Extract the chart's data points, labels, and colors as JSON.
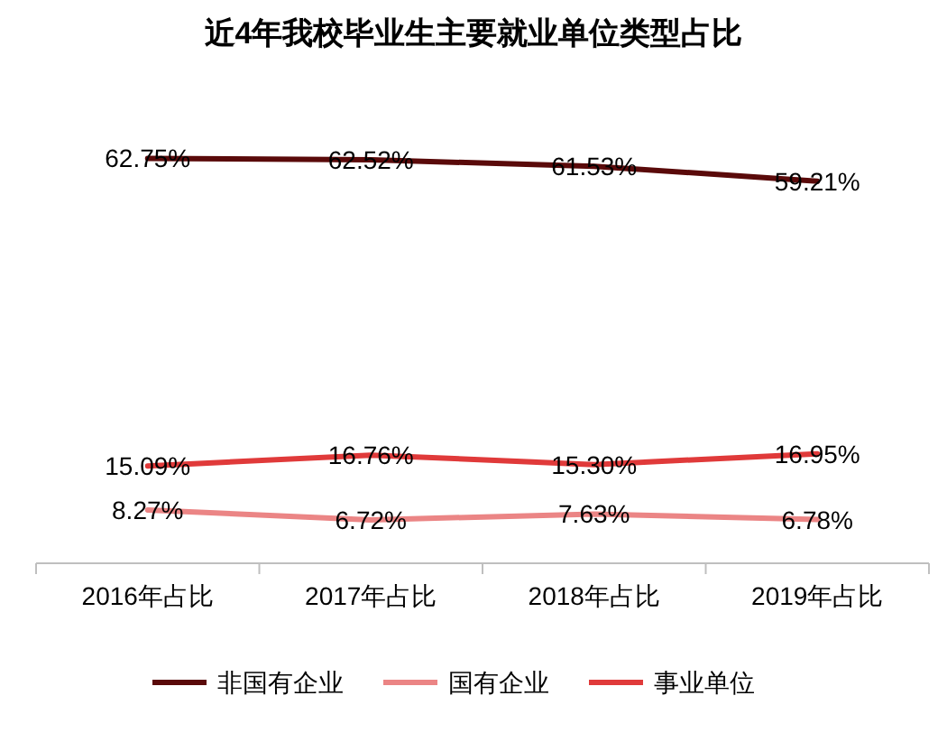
{
  "chart_data": {
    "type": "line",
    "title": "近4年我校毕业生主要就业单位类型占比",
    "relative": false,
    "categories": [
      "2016年占比",
      "2017年占比",
      "2018年占比",
      "2019年占比"
    ],
    "legend": "bottom",
    "series": [
      {
        "name": "非国有企业",
        "color": "#5a0a0a",
        "values": [
          62.75,
          62.52,
          61.53,
          59.21
        ],
        "value_labels": [
          "62.75%",
          "62.52%",
          "61.53%",
          "59.21%"
        ]
      },
      {
        "name": "国有企业",
        "color": "#eb8585",
        "values": [
          8.27,
          6.72,
          7.63,
          6.78
        ],
        "value_labels": [
          "8.27%",
          "6.72%",
          "7.63%",
          "6.78%"
        ]
      },
      {
        "name": "事业单位",
        "color": "#e03a3a",
        "values": [
          15.09,
          16.76,
          15.3,
          16.95
        ],
        "value_labels": [
          "15.09%",
          "16.76%",
          "15.30%",
          "16.95%"
        ]
      }
    ]
  }
}
